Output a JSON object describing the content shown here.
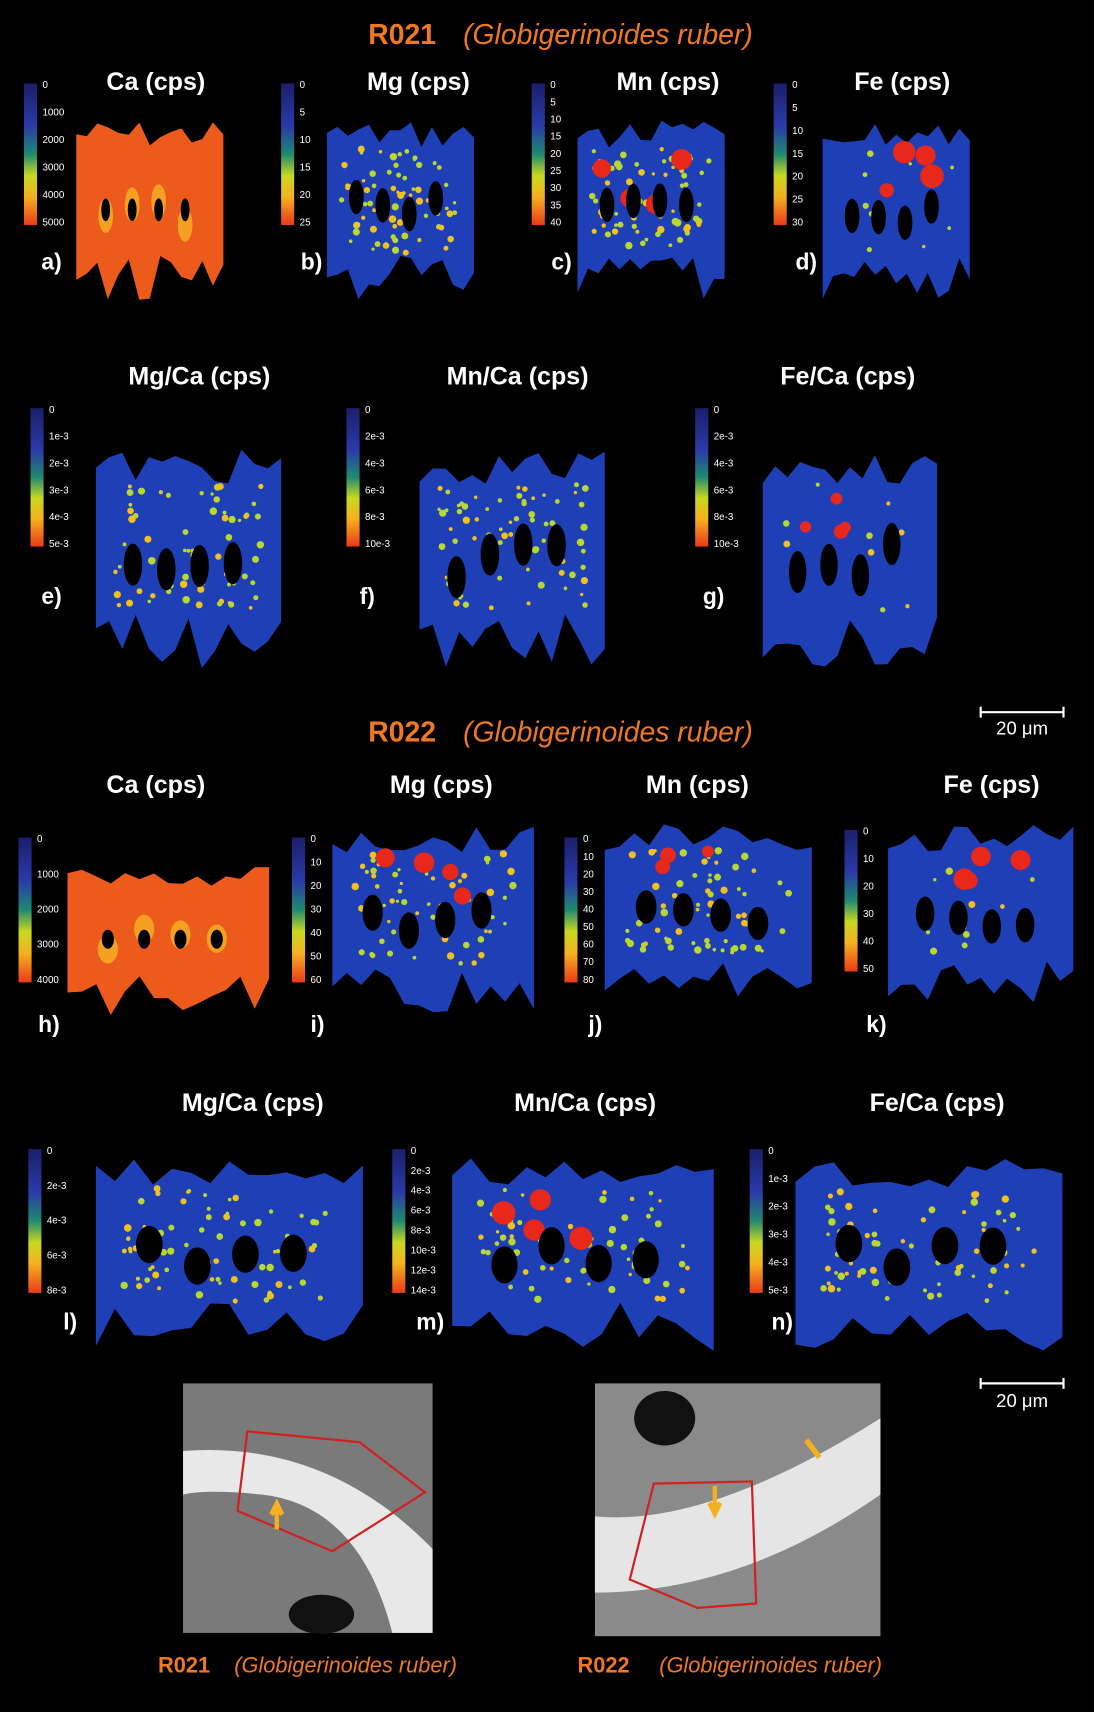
{
  "sections": [
    {
      "title": "R021",
      "species": "(Globigerinoides ruber)",
      "panels": [
        {
          "title": "Ca (cps)",
          "letter": "a)",
          "ticks": [
            "0",
            "1000",
            "2000",
            "3000",
            "4000",
            "5000"
          ]
        },
        {
          "title": "Mg (cps)",
          "letter": "b)",
          "ticks": [
            "0",
            "5",
            "10",
            "15",
            "20",
            "25"
          ]
        },
        {
          "title": "Mn (cps)",
          "letter": "c)",
          "ticks": [
            "0",
            "5",
            "10",
            "15",
            "20",
            "25",
            "30",
            "35",
            "40"
          ]
        },
        {
          "title": "Fe (cps)",
          "letter": "d)",
          "ticks": [
            "0",
            "5",
            "10",
            "15",
            "20",
            "25",
            "30"
          ]
        },
        {
          "title": "Mg/Ca (cps)",
          "letter": "e)",
          "ticks": [
            "0",
            "1e-3",
            "2e-3",
            "3e-3",
            "4e-3",
            "5e-3"
          ]
        },
        {
          "title": "Mn/Ca (cps)",
          "letter": "f)",
          "ticks": [
            "0",
            "2e-3",
            "4e-3",
            "6e-3",
            "8e-3",
            "10e-3"
          ]
        },
        {
          "title": "Fe/Ca (cps)",
          "letter": "g)",
          "ticks": [
            "0",
            "2e-3",
            "4e-3",
            "6e-3",
            "8e-3",
            "10e-3"
          ]
        }
      ],
      "scale_bar": "20 μm"
    },
    {
      "title": "R022",
      "species": "(Globigerinoides ruber)",
      "panels": [
        {
          "title": "Ca (cps)",
          "letter": "h)",
          "ticks": [
            "0",
            "1000",
            "2000",
            "3000",
            "4000"
          ]
        },
        {
          "title": "Mg (cps)",
          "letter": "i)",
          "ticks": [
            "0",
            "10",
            "20",
            "30",
            "40",
            "50",
            "60"
          ]
        },
        {
          "title": "Mn (cps)",
          "letter": "j)",
          "ticks": [
            "0",
            "10",
            "20",
            "30",
            "40",
            "50",
            "60",
            "70",
            "80"
          ]
        },
        {
          "title": "Fe (cps)",
          "letter": "k)",
          "ticks": [
            "0",
            "10",
            "20",
            "30",
            "40",
            "50"
          ]
        },
        {
          "title": "Mg/Ca (cps)",
          "letter": "l)",
          "ticks": [
            "0",
            "2e-3",
            "4e-3",
            "6e-3",
            "8e-3"
          ]
        },
        {
          "title": "Mn/Ca (cps)",
          "letter": "m)",
          "ticks": [
            "0",
            "2e-3",
            "4e-3",
            "6e-3",
            "8e-3",
            "10e-3",
            "12e-3",
            "14e-3"
          ]
        },
        {
          "title": "Fe/Ca (cps)",
          "letter": "n)",
          "ticks": [
            "0",
            "1e-3",
            "2e-3",
            "3e-3",
            "4e-3",
            "5e-3"
          ]
        }
      ],
      "scale_bar": "20 μm"
    }
  ],
  "sem_images": [
    {
      "sample": "R021",
      "species": "(Globigerinoides ruber)"
    },
    {
      "sample": "R022",
      "species": "(Globigerinoides ruber)"
    }
  ]
}
